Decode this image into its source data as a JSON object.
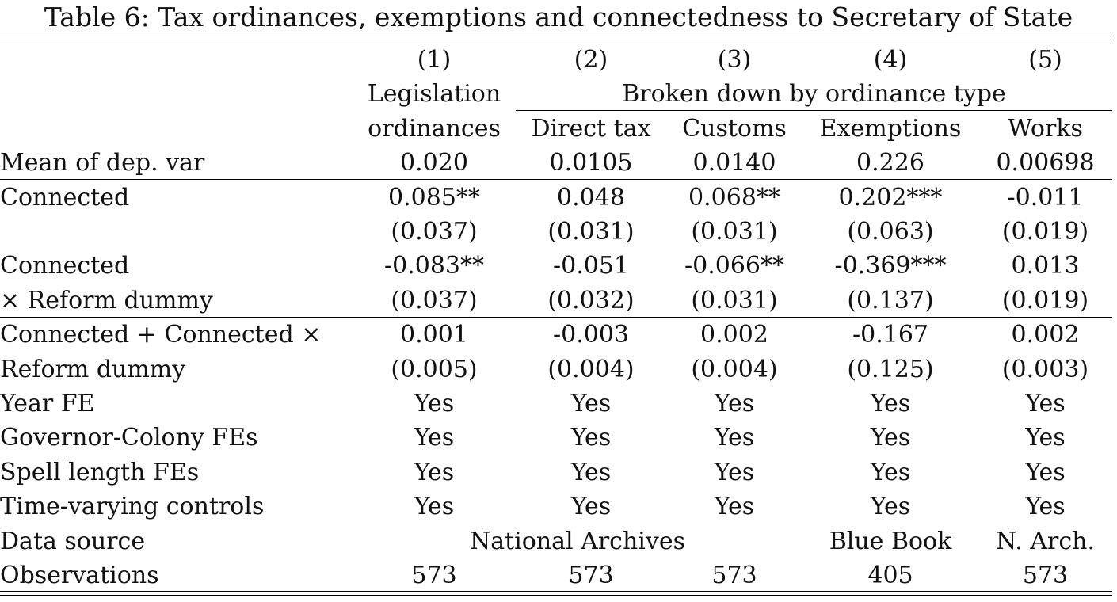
{
  "title": "Table 6: Tax ordinances, exemptions and connectedness to Secretary of State",
  "columns": {
    "numbers": [
      "(1)",
      "(2)",
      "(3)",
      "(4)",
      "(5)"
    ],
    "col1_header_line1": "Legislation",
    "col1_header_line2": "ordinances",
    "group_header": "Broken down by ordinance type",
    "subheaders": [
      "Direct tax",
      "Customs",
      "Exemptions",
      "Works"
    ]
  },
  "mean_row": {
    "label": "Mean of dep. var",
    "values": [
      "0.020",
      "0.0105",
      "0.0140",
      "0.226",
      "0.00698"
    ]
  },
  "connected": {
    "label": "Connected",
    "coefs": [
      "0.085**",
      "0.048",
      "0.068**",
      "0.202***",
      "-0.011"
    ],
    "ses": [
      "(0.037)",
      "(0.031)",
      "(0.031)",
      "(0.063)",
      "(0.019)"
    ]
  },
  "interaction": {
    "label_line1": "Connected",
    "label_line2": "× Reform dummy",
    "coefs": [
      "-0.083**",
      "-0.051",
      "-0.066**",
      "-0.369***",
      "0.013"
    ],
    "ses": [
      "(0.037)",
      "(0.032)",
      "(0.031)",
      "(0.137)",
      "(0.019)"
    ]
  },
  "sum_effect": {
    "label_line1": "Connected + Connected ×",
    "label_line2": "Reform dummy",
    "coefs": [
      "0.001",
      "-0.003",
      "0.002",
      "-0.167",
      "0.002"
    ],
    "ses": [
      "(0.005)",
      "(0.004)",
      "(0.004)",
      "(0.125)",
      "(0.003)"
    ]
  },
  "controls": [
    {
      "label": "Year FE",
      "values": [
        "Yes",
        "Yes",
        "Yes",
        "Yes",
        "Yes"
      ]
    },
    {
      "label": "Governor-Colony FEs",
      "values": [
        "Yes",
        "Yes",
        "Yes",
        "Yes",
        "Yes"
      ]
    },
    {
      "label": "Spell length FEs",
      "values": [
        "Yes",
        "Yes",
        "Yes",
        "Yes",
        "Yes"
      ]
    },
    {
      "label": "Time-varying controls",
      "values": [
        "Yes",
        "Yes",
        "Yes",
        "Yes",
        "Yes"
      ]
    }
  ],
  "data_source": {
    "label": "Data source",
    "values": [
      "National Archives",
      "Blue Book",
      "N. Arch."
    ]
  },
  "observations": {
    "label": "Observations",
    "values": [
      "573",
      "573",
      "573",
      "405",
      "573"
    ]
  }
}
